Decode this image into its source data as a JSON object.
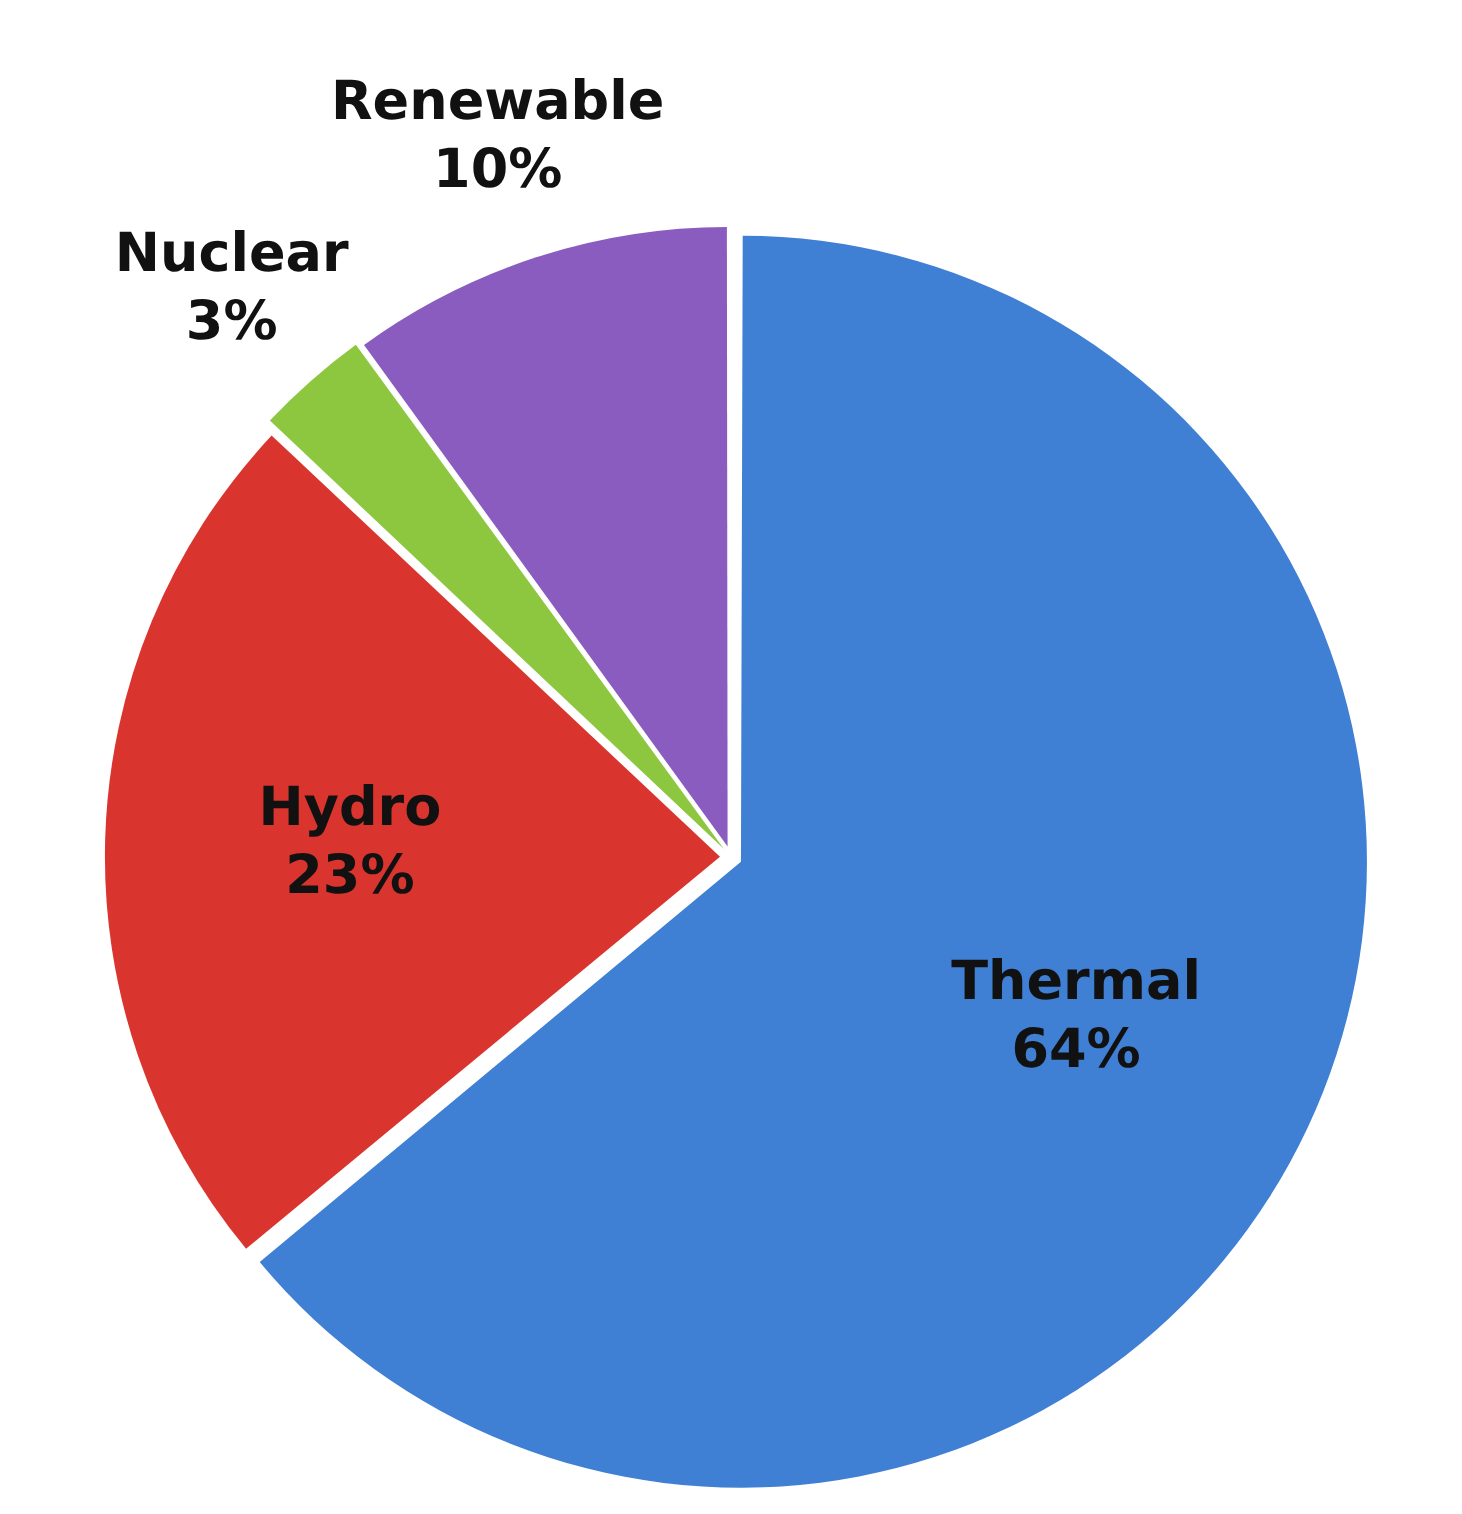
{
  "chart_data": {
    "type": "pie",
    "categories": [
      "Thermal",
      "Hydro",
      "Nuclear",
      "Renewable"
    ],
    "values": [
      64,
      23,
      3,
      10
    ],
    "colors": [
      "#3f7fd4",
      "#d9352e",
      "#8dc63f",
      "#8a5cbf"
    ],
    "value_labels": [
      "64%",
      "23%",
      "3%",
      "10%"
    ]
  }
}
